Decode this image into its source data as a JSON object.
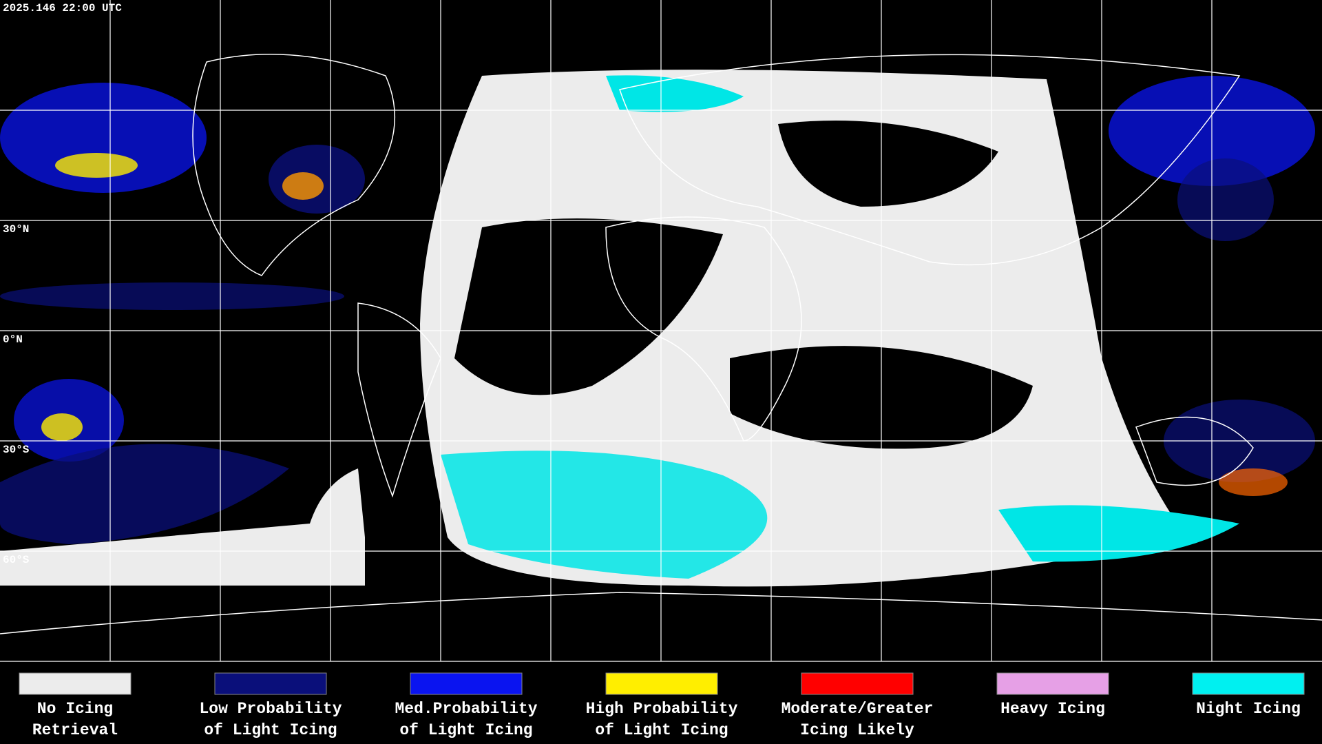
{
  "header": {
    "timestamp": "2025.146 22:00 UTC"
  },
  "map": {
    "latitude_labels": [
      "30°N",
      "0°N",
      "30°S",
      "60°S"
    ]
  },
  "legend": {
    "items": [
      {
        "lines": [
          "No Icing",
          "Retrieval"
        ],
        "color": "#ececec"
      },
      {
        "lines": [
          "Low Probability",
          "of Light Icing"
        ],
        "color": "#0a0f7a"
      },
      {
        "lines": [
          "Med.Probability",
          "of Light Icing"
        ],
        "color": "#0a14f0"
      },
      {
        "lines": [
          "High Probability",
          "of Light Icing"
        ],
        "color": "#ffee00"
      },
      {
        "lines": [
          "Moderate/Greater",
          "Icing Likely"
        ],
        "color": "#ff0000"
      },
      {
        "lines": [
          "Heavy Icing"
        ],
        "color": "#e6a0e6"
      },
      {
        "lines": [
          "Night Icing"
        ],
        "color": "#00f0f0"
      }
    ]
  }
}
